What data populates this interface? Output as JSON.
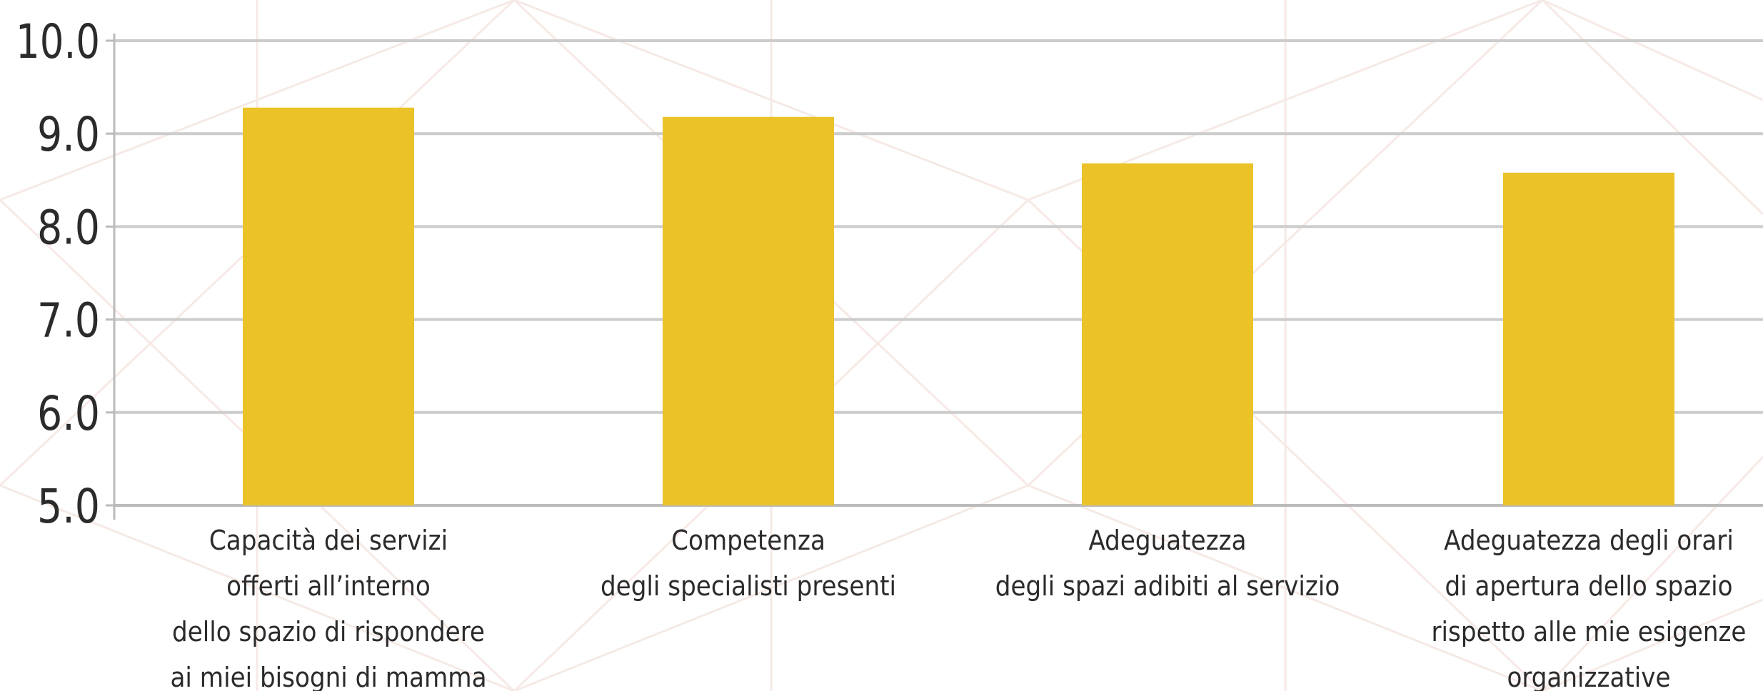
{
  "chart_data": {
    "type": "bar",
    "categories": [
      [
        "Capacità dei servizi",
        "offerti all’interno",
        "dello spazio di rispondere",
        "ai miei bisogni di mamma"
      ],
      [
        "Competenza",
        "degli specialisti presenti"
      ],
      [
        "Adeguatezza",
        "degli spazi adibiti al servizio"
      ],
      [
        "Adeguatezza degli orari",
        "di apertura dello spazio",
        "rispetto alle mie esigenze",
        "organizzative"
      ]
    ],
    "values": [
      9.28,
      9.18,
      8.68,
      8.58
    ],
    "yticks": [
      "5.0",
      "6.0",
      "7.0",
      "8.0",
      "9.0",
      "10.0"
    ],
    "ylim": [
      5,
      10
    ],
    "grid": true,
    "colors": {
      "bar": "#EBC329",
      "grid": "#CCCCCC",
      "axis": "#BBBBBB",
      "text": "#2B2B2B",
      "pattern": "#F6EAE6"
    }
  }
}
